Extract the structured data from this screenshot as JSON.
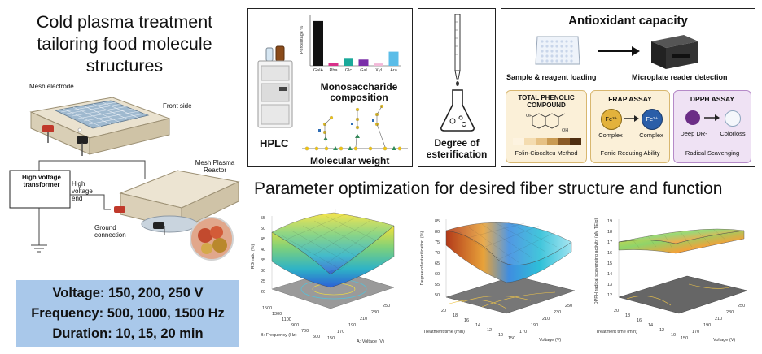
{
  "main_title": {
    "lines": [
      "Cold plasma treatment",
      "tailoring food molecule",
      "structures"
    ]
  },
  "reactor": {
    "mesh_electrode": "Mesh electrode",
    "front_side": "Front side",
    "mesh_plasma_reactor": "Mesh Plasma Reactor",
    "high_voltage_transformer": "High voltage transformer",
    "high_voltage_end": "High voltage end",
    "ground_connection": "Ground connection"
  },
  "parameters": {
    "voltage": "Voltage: 150, 200, 250 V",
    "frequency": "Frequency: 500, 1000, 1500 Hz",
    "duration": "Duration: 10, 15, 20 min"
  },
  "hplc_panel": {
    "hplc": "HPLC",
    "monosaccharide": "Monosaccharide composition",
    "molecular_weight": "Molecular weight",
    "bar_chart": {
      "ylabel": "Percentage %",
      "categories": [
        "GalA",
        "Rha",
        "Glc",
        "Gal",
        "Xyl",
        "Ara"
      ],
      "values": [
        57,
        4,
        9,
        8,
        3,
        18
      ],
      "colors": [
        "#111111",
        "#d9308a",
        "#1aa99a",
        "#7a2ea8",
        "#f2b8d8",
        "#5bbde8"
      ]
    }
  },
  "esterification": {
    "label": "Degree of esterification"
  },
  "antioxidant": {
    "title": "Antioxidant capacity",
    "loading": "Sample & reagent loading",
    "detection": "Microplate reader detection",
    "tpc": {
      "title": "TOTAL PHENOLIC COMPOUND",
      "caption": "Folin-Ciocalteu Method",
      "swatches": [
        "#fdf3e0",
        "#f4dcb0",
        "#e6c184",
        "#c99a52",
        "#8a5a26",
        "#4e2e10"
      ]
    },
    "frap": {
      "title": "FRAP ASSAY",
      "ion_left": "Fe³⁺",
      "ion_right": "Fe²⁺",
      "complex_left": "Complex",
      "complex_right": "Complex",
      "caption": "Ferric Reduting Ability"
    },
    "dpph": {
      "title": "DPPH ASSAY",
      "left": "Deep DR-",
      "right": "Colorloss",
      "caption": "Radical Scavenging"
    }
  },
  "optimization": {
    "title": "Parameter optimization for desired fiber structure and function",
    "plots": [
      {
        "zlabel": "RG ratio (%)",
        "zticks": [
          "55",
          "50",
          "45",
          "40",
          "35",
          "30",
          "25",
          "20"
        ],
        "xlabel": "B: Frequency (Hz)",
        "xticks": [
          "1500",
          "1300",
          "1100",
          "900",
          "700",
          "500"
        ],
        "ylabel": "A: Voltage (V)",
        "yticks": [
          "150",
          "170",
          "190",
          "210",
          "230",
          "250"
        ]
      },
      {
        "zlabel": "Degree of esterification (%)",
        "zticks": [
          "85",
          "80",
          "75",
          "70",
          "65",
          "60",
          "55",
          "50"
        ],
        "xlabel": "Treatment time (min)",
        "xticks": [
          "20",
          "18",
          "16",
          "14",
          "12",
          "10"
        ],
        "ylabel": "Voltage (V)",
        "yticks": [
          "150",
          "170",
          "190",
          "210",
          "230",
          "250"
        ]
      },
      {
        "zlabel": "DPPH radical scavenging activity (μM TE/g)",
        "zticks": [
          "19",
          "18",
          "17",
          "16",
          "15",
          "14",
          "13",
          "12"
        ],
        "xlabel": "Treatment time (min)",
        "xticks": [
          "20",
          "18",
          "16",
          "14",
          "12",
          "10"
        ],
        "ylabel": "Voltage (V)",
        "yticks": [
          "150",
          "170",
          "190",
          "210",
          "230",
          "250"
        ]
      }
    ]
  }
}
